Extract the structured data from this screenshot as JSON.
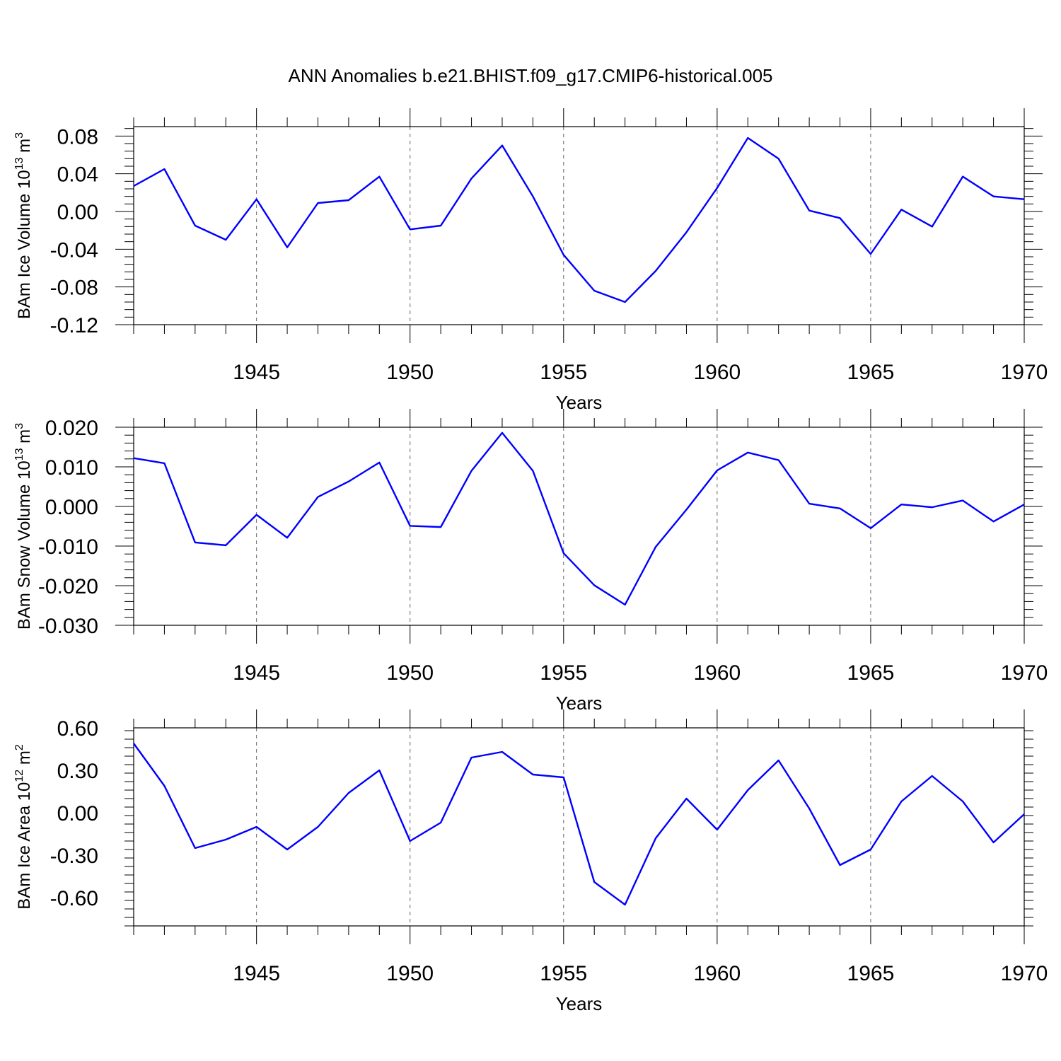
{
  "title": "ANN Anomalies b.e21.BHIST.f09_g17.CMIP6-historical.005",
  "line_color": "#0000ff",
  "grid_color": "#000000",
  "chart_data": [
    {
      "type": "line",
      "ylabel": "BAm Ice Volume 10",
      "ylabel_exp": "13",
      "ylabel_unit": " m",
      "ylabel_unit_exp": "3",
      "xlabel": "Years",
      "xlim": [
        1941,
        1970
      ],
      "ylim": [
        -0.12,
        0.09
      ],
      "yticks": [
        -0.12,
        -0.08,
        -0.04,
        0.0,
        0.04,
        0.08
      ],
      "ytick_labels": [
        "-0.12",
        "-0.08",
        "-0.04",
        "0.00",
        "0.04",
        "0.08"
      ],
      "xticks": [
        1945,
        1950,
        1955,
        1960,
        1965,
        1970
      ],
      "xtick_labels": [
        "1945",
        "1950",
        "1955",
        "1960",
        "1965",
        "1970"
      ],
      "grid": "vertical dashed at major x ticks",
      "x": [
        1941,
        1942,
        1943,
        1944,
        1945,
        1946,
        1947,
        1948,
        1949,
        1950,
        1951,
        1952,
        1953,
        1954,
        1955,
        1956,
        1957,
        1958,
        1959,
        1960,
        1961,
        1962,
        1963,
        1964,
        1965,
        1966,
        1967,
        1968,
        1969,
        1970
      ],
      "series": [
        {
          "values": [
            0.027,
            0.045,
            -0.015,
            -0.03,
            0.013,
            -0.038,
            0.009,
            0.012,
            0.037,
            -0.019,
            -0.015,
            0.035,
            0.07,
            0.016,
            -0.046,
            -0.084,
            -0.096,
            -0.063,
            -0.022,
            0.025,
            0.078,
            0.056,
            0.001,
            -0.007,
            -0.045,
            0.002,
            -0.016,
            0.037,
            0.016,
            0.013
          ]
        }
      ]
    },
    {
      "type": "line",
      "ylabel": "BAm Snow Volume 10",
      "ylabel_exp": "13",
      "ylabel_unit": " m",
      "ylabel_unit_exp": "3",
      "xlabel": "Years",
      "xlim": [
        1941,
        1970
      ],
      "ylim": [
        -0.03,
        0.02
      ],
      "yticks": [
        -0.03,
        -0.02,
        -0.01,
        0.0,
        0.01,
        0.02
      ],
      "ytick_labels": [
        "-0.030",
        "-0.020",
        "-0.010",
        "0.000",
        "0.010",
        "0.020"
      ],
      "xticks": [
        1945,
        1950,
        1955,
        1960,
        1965,
        1970
      ],
      "xtick_labels": [
        "1945",
        "1950",
        "1955",
        "1960",
        "1965",
        "1970"
      ],
      "grid": "vertical dashed at major x ticks",
      "x": [
        1941,
        1942,
        1943,
        1944,
        1945,
        1946,
        1947,
        1948,
        1949,
        1950,
        1951,
        1952,
        1953,
        1954,
        1955,
        1956,
        1957,
        1958,
        1959,
        1960,
        1961,
        1962,
        1963,
        1964,
        1965,
        1966,
        1967,
        1968,
        1969,
        1970
      ],
      "series": [
        {
          "values": [
            0.0122,
            0.0109,
            -0.0091,
            -0.0098,
            -0.0021,
            -0.0079,
            0.0024,
            0.0063,
            0.0111,
            -0.0049,
            -0.0052,
            0.009,
            0.0186,
            0.009,
            -0.0118,
            -0.0199,
            -0.0248,
            -0.0102,
            -0.0008,
            0.0091,
            0.0136,
            0.0117,
            0.0007,
            -0.0005,
            -0.0055,
            0.0005,
            -0.0002,
            0.0015,
            -0.0038,
            0.0005
          ]
        }
      ]
    },
    {
      "type": "line",
      "ylabel": "BAm Ice Area 10",
      "ylabel_exp": "12",
      "ylabel_unit": " m",
      "ylabel_unit_exp": "2",
      "xlabel": "Years",
      "xlim": [
        1941,
        1970
      ],
      "ylim": [
        -0.8,
        0.6
      ],
      "yticks": [
        -0.6,
        -0.3,
        0.0,
        0.3,
        0.6
      ],
      "ytick_labels": [
        "-0.60",
        "-0.30",
        "0.00",
        "0.30",
        "0.60"
      ],
      "xticks": [
        1945,
        1950,
        1955,
        1960,
        1965,
        1970
      ],
      "xtick_labels": [
        "1945",
        "1950",
        "1955",
        "1960",
        "1965",
        "1970"
      ],
      "grid": "vertical dashed at major x ticks",
      "x": [
        1941,
        1942,
        1943,
        1944,
        1945,
        1946,
        1947,
        1948,
        1949,
        1950,
        1951,
        1952,
        1953,
        1954,
        1955,
        1956,
        1957,
        1958,
        1959,
        1960,
        1961,
        1962,
        1963,
        1964,
        1965,
        1966,
        1967,
        1968,
        1969,
        1970
      ],
      "series": [
        {
          "values": [
            0.49,
            0.19,
            -0.25,
            -0.19,
            -0.1,
            -0.26,
            -0.1,
            0.14,
            0.3,
            -0.2,
            -0.07,
            0.39,
            0.43,
            0.27,
            0.25,
            -0.49,
            -0.65,
            -0.18,
            0.1,
            -0.12,
            0.16,
            0.37,
            0.03,
            -0.37,
            -0.26,
            0.08,
            0.26,
            0.08,
            -0.21,
            -0.01
          ]
        }
      ]
    }
  ]
}
